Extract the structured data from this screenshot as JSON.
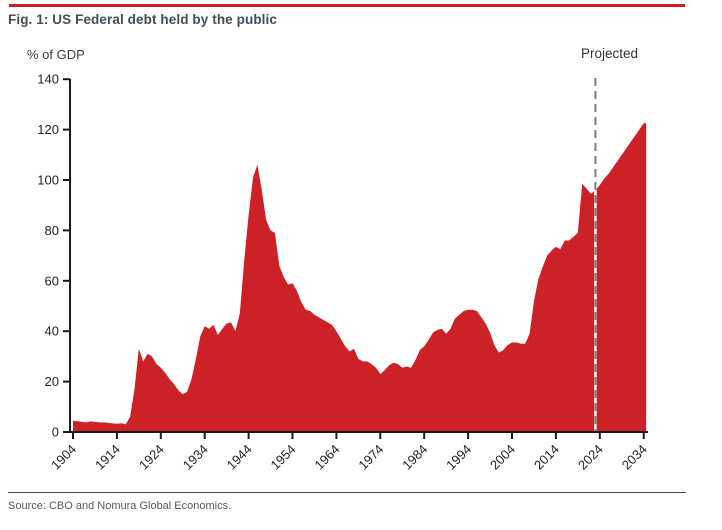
{
  "header": {
    "title": "Fig. 1: US Federal debt held by the public"
  },
  "footer": {
    "source": "Source: CBO and Nomura Global Economics."
  },
  "chart_data": {
    "type": "area",
    "title": "Fig. 1: US Federal debt held by the public",
    "ylabel": "% of GDP",
    "xlabel": "",
    "annotation": "Projected",
    "projection_divider_year": 2023,
    "grid": false,
    "legend": "none",
    "ylim": [
      0,
      140
    ],
    "xlim": [
      1904,
      2035
    ],
    "y_ticks": [
      0,
      20,
      40,
      60,
      80,
      100,
      120,
      140
    ],
    "x_ticks": [
      1904,
      1914,
      1924,
      1934,
      1944,
      1954,
      1964,
      1974,
      1984,
      1994,
      2004,
      2014,
      2024,
      2034
    ],
    "colors": {
      "area_fill": "#cc2227",
      "divider_line": "#7f7f7f",
      "axis": "#1a1a1a",
      "tick_text": "#262626",
      "accent_rule": "#cb2026"
    },
    "series": [
      {
        "name": "US federal debt held by the public (% of GDP)",
        "x": [
          1904,
          1905,
          1906,
          1907,
          1908,
          1909,
          1910,
          1911,
          1912,
          1913,
          1914,
          1915,
          1916,
          1917,
          1918,
          1919,
          1920,
          1921,
          1922,
          1923,
          1924,
          1925,
          1926,
          1927,
          1928,
          1929,
          1930,
          1931,
          1932,
          1933,
          1934,
          1935,
          1936,
          1937,
          1938,
          1939,
          1940,
          1941,
          1942,
          1943,
          1944,
          1945,
          1946,
          1947,
          1948,
          1949,
          1950,
          1951,
          1952,
          1953,
          1954,
          1955,
          1956,
          1957,
          1958,
          1959,
          1960,
          1961,
          1962,
          1963,
          1964,
          1965,
          1966,
          1967,
          1968,
          1969,
          1970,
          1971,
          1972,
          1973,
          1974,
          1975,
          1976,
          1977,
          1978,
          1979,
          1980,
          1981,
          1982,
          1983,
          1984,
          1985,
          1986,
          1987,
          1988,
          1989,
          1990,
          1991,
          1992,
          1993,
          1994,
          1995,
          1996,
          1997,
          1998,
          1999,
          2000,
          2001,
          2002,
          2003,
          2004,
          2005,
          2006,
          2007,
          2008,
          2009,
          2010,
          2011,
          2012,
          2013,
          2014,
          2015,
          2016,
          2017,
          2018,
          2019,
          2020,
          2021,
          2022,
          2023,
          2024,
          2025,
          2026,
          2027,
          2028,
          2029,
          2030,
          2031,
          2032,
          2033,
          2034
        ],
        "values": [
          4.5,
          4.3,
          4.0,
          3.8,
          4.2,
          4.0,
          3.8,
          3.8,
          3.6,
          3.4,
          3.3,
          3.5,
          3.0,
          6.0,
          17,
          33,
          28,
          31,
          30,
          27,
          25.5,
          23.5,
          21,
          19,
          16.5,
          15,
          16,
          21,
          29,
          38,
          42,
          41,
          42.5,
          38.5,
          41,
          43,
          43.5,
          40,
          47,
          68,
          86,
          101,
          106,
          96,
          84,
          80,
          79,
          66,
          61.5,
          58.5,
          59,
          56,
          51.5,
          48.5,
          48,
          46.5,
          45.5,
          44.5,
          43.5,
          42.5,
          40,
          37,
          34,
          32,
          33,
          29,
          28,
          28,
          27,
          25.5,
          23,
          24.5,
          26.5,
          27.5,
          27,
          25.5,
          26,
          25.5,
          28.5,
          32.5,
          34,
          36.5,
          39.5,
          40.5,
          41,
          39,
          41,
          45,
          46.5,
          48,
          48.5,
          48.5,
          48,
          45.5,
          43,
          39.5,
          34.5,
          31.5,
          32.5,
          34.5,
          35.5,
          35.5,
          35,
          35,
          39,
          52,
          60.5,
          65.5,
          70,
          72,
          73.5,
          72.5,
          76,
          76,
          77.5,
          79,
          98.5,
          96.5,
          94.5,
          96,
          98,
          100.5,
          102.5,
          105,
          107.5,
          110,
          112.5,
          115,
          117.5,
          120,
          122.5
        ]
      }
    ]
  }
}
